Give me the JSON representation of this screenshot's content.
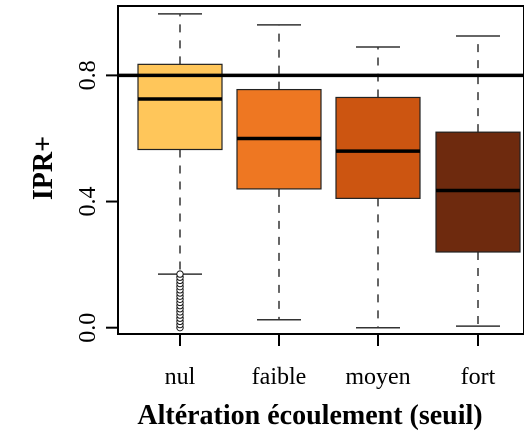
{
  "chart_data": {
    "type": "boxplot",
    "title": "",
    "xlabel": "Altération écoulement (seuil)",
    "ylabel": "IPR+",
    "ylim": [
      -0.02,
      1.02
    ],
    "yticks": [
      {
        "value": 0.0,
        "label": "0.0"
      },
      {
        "value": 0.4,
        "label": "0.4"
      },
      {
        "value": 0.8,
        "label": "0.8"
      }
    ],
    "reference_line": 0.8,
    "grid": false,
    "categories": [
      "nul",
      "faible",
      "moyen",
      "fort"
    ],
    "boxes": [
      {
        "category": "nul",
        "whisker_low": 0.17,
        "q1": 0.565,
        "median": 0.725,
        "q3": 0.835,
        "whisker_high": 0.995,
        "color": "#FFC65A",
        "outliers": [
          0.0,
          0.01,
          0.02,
          0.03,
          0.04,
          0.05,
          0.06,
          0.07,
          0.08,
          0.09,
          0.1,
          0.11,
          0.12,
          0.13,
          0.14,
          0.15,
          0.16,
          0.17
        ]
      },
      {
        "category": "faible",
        "whisker_low": 0.025,
        "q1": 0.44,
        "median": 0.6,
        "q3": 0.755,
        "whisker_high": 0.96,
        "color": "#EE7722",
        "outliers": []
      },
      {
        "category": "moyen",
        "whisker_low": 0.0,
        "q1": 0.41,
        "median": 0.56,
        "q3": 0.73,
        "whisker_high": 0.89,
        "color": "#CC5511",
        "outliers": []
      },
      {
        "category": "fort",
        "whisker_low": 0.005,
        "q1": 0.24,
        "median": 0.435,
        "q3": 0.62,
        "whisker_high": 0.925,
        "color": "#6E2A0E",
        "outliers": []
      }
    ]
  }
}
